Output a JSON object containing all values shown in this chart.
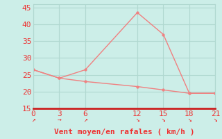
{
  "x": [
    0,
    3,
    6,
    12,
    15,
    18,
    21
  ],
  "y_rafales": [
    26.5,
    24.0,
    26.5,
    43.5,
    37.0,
    19.5,
    19.5
  ],
  "y_moyen": [
    26.5,
    24.0,
    23.0,
    21.5,
    20.5,
    19.5,
    19.5
  ],
  "xlabel": "Vent moyen/en rafales ( km/h )",
  "xlim": [
    0,
    21
  ],
  "ylim": [
    15,
    46
  ],
  "yticks": [
    15,
    20,
    25,
    30,
    35,
    40,
    45
  ],
  "xticks": [
    0,
    3,
    6,
    12,
    15,
    18,
    21
  ],
  "line_color": "#f08080",
  "marker_color": "#f08080",
  "bg_color": "#cceee8",
  "grid_color": "#b0d8d0",
  "text_color": "#ee3030",
  "axis_line_color": "#cc2020",
  "xlabel_fontsize": 8,
  "tick_fontsize": 8,
  "arrow_symbols": [
    "↗",
    "→",
    "↗",
    "↘",
    "↘",
    "↘",
    "↘"
  ]
}
